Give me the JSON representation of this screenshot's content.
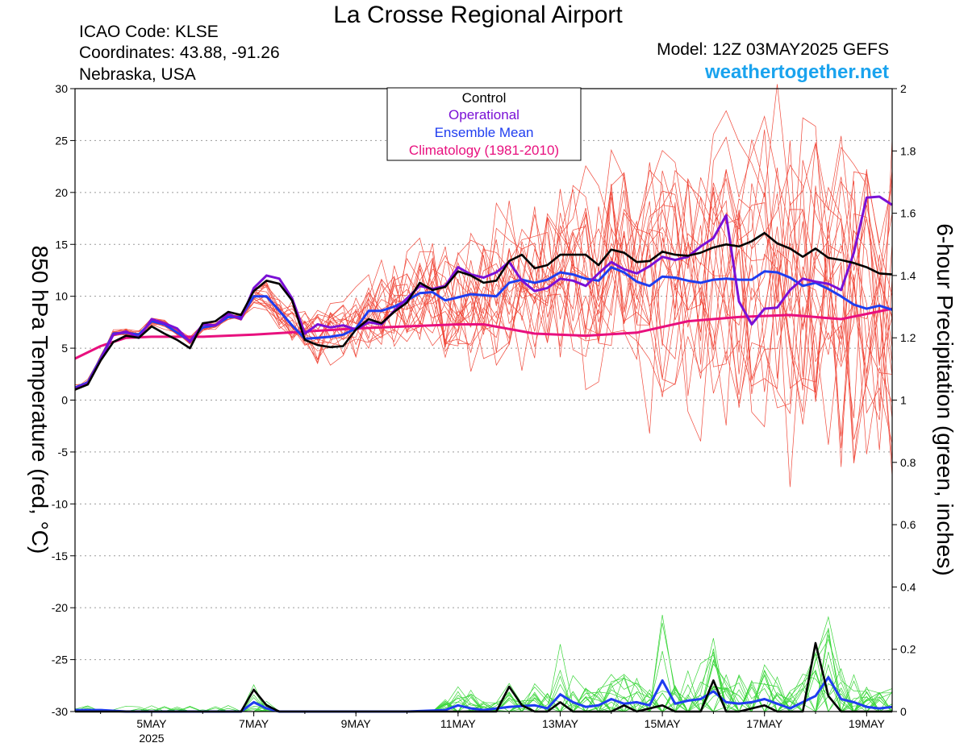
{
  "header": {
    "title": "La Crosse Regional Airport",
    "icao": "ICAO Code: KLSE",
    "coords": "Coordinates: 43.88, -91.26",
    "region": "Nebraska, USA",
    "model": "Model: 12Z 03MAY2025 GEFS",
    "site": "weathertogether.net"
  },
  "colors": {
    "control": "#000000",
    "operational": "#7a10d6",
    "mean": "#1f3df0",
    "climatology": "#e8107e",
    "members_temp": "#f04a3c",
    "members_precip": "#3ad63a"
  },
  "chart_data": {
    "type": "line",
    "title": "La Crosse Regional Airport",
    "ylabel": "850 hPa Temperature (red, °C)",
    "y2label": "6-hour Precipitation (green, inches)",
    "ylim": [
      -30,
      30
    ],
    "y2lim": [
      0,
      2
    ],
    "xlim": [
      3.5,
      19.5
    ],
    "y_ticks": [
      "30",
      "25",
      "20",
      "15",
      "10",
      "5",
      "0",
      "-5",
      "-10",
      "-15",
      "-20",
      "-25",
      "-30"
    ],
    "y2_ticks": [
      "2",
      "1.8",
      "1.6",
      "1.4",
      "1.2",
      "1",
      "0.8",
      "0.6",
      "0.4",
      "0.2",
      "0"
    ],
    "x_ticks": [
      {
        "x": 5,
        "label": "5MAY",
        "sub": "2025"
      },
      {
        "x": 7,
        "label": "7MAY",
        "sub": ""
      },
      {
        "x": 9,
        "label": "9MAY",
        "sub": ""
      },
      {
        "x": 11,
        "label": "11MAY",
        "sub": ""
      },
      {
        "x": 13,
        "label": "13MAY",
        "sub": ""
      },
      {
        "x": 15,
        "label": "15MAY",
        "sub": ""
      },
      {
        "x": 17,
        "label": "17MAY",
        "sub": ""
      },
      {
        "x": 19,
        "label": "19MAY",
        "sub": ""
      }
    ],
    "legend": {
      "placement": "top-center",
      "items": [
        "Control",
        "Operational",
        "Ensemble Mean",
        "Climatology (1981-2010)"
      ]
    },
    "grid": "horizontal dotted",
    "series": [
      {
        "name": "Climatology (1981-2010)",
        "role": "climatology",
        "axis": "left",
        "x": [
          3.5,
          4.0,
          4.5,
          5.0,
          6.0,
          7.0,
          8.0,
          9.0,
          10.0,
          11.0,
          11.5,
          12.5,
          13.5,
          14.5,
          15.5,
          16.5,
          17.5,
          18.5,
          19.5
        ],
        "y": [
          4.0,
          5.2,
          6.0,
          6.1,
          6.1,
          6.3,
          6.6,
          6.9,
          7.1,
          7.3,
          7.3,
          6.4,
          6.2,
          6.5,
          7.6,
          8.0,
          8.2,
          7.8,
          8.8
        ]
      },
      {
        "name": "Control",
        "role": "control",
        "axis": "left",
        "x": [
          3.5,
          3.75,
          4.0,
          4.25,
          4.5,
          4.75,
          5.0,
          5.25,
          5.5,
          5.75,
          6.0,
          6.25,
          6.5,
          6.75,
          7.0,
          7.25,
          7.5,
          7.75,
          8.0,
          8.25,
          8.5,
          8.75,
          9.0,
          9.25,
          9.5,
          9.75,
          10.0,
          10.25,
          10.5,
          10.75,
          11.0,
          11.25,
          11.5,
          11.75,
          12.0,
          12.25,
          12.5,
          12.75,
          13.0,
          13.25,
          13.5,
          13.75,
          14.0,
          14.25,
          14.5,
          14.75,
          15.0,
          15.25,
          15.5,
          15.75,
          16.0,
          16.25,
          16.5,
          16.75,
          17.0,
          17.25,
          17.5,
          17.75,
          18.0,
          18.25,
          18.5,
          18.75,
          19.0,
          19.25,
          19.5
        ],
        "y": [
          1.0,
          1.5,
          3.8,
          5.6,
          6.2,
          6.0,
          7.1,
          6.4,
          5.8,
          5.0,
          7.4,
          7.6,
          8.5,
          8.2,
          10.5,
          11.5,
          11.2,
          9.6,
          5.8,
          5.3,
          5.1,
          5.2,
          6.8,
          7.8,
          7.4,
          8.5,
          9.4,
          11.3,
          10.6,
          10.9,
          12.4,
          12.0,
          11.3,
          11.5,
          13.4,
          14.0,
          12.7,
          13.0,
          14.0,
          14.0,
          14.0,
          13.0,
          14.5,
          14.2,
          13.3,
          13.4,
          14.3,
          14.0,
          13.9,
          14.2,
          14.7,
          15.0,
          14.8,
          15.3,
          16.1,
          15.1,
          14.6,
          13.8,
          14.6,
          13.7,
          13.5,
          13.2,
          12.8,
          12.2,
          12.1
        ]
      },
      {
        "name": "Operational",
        "role": "operational",
        "axis": "left",
        "x": [
          3.5,
          3.75,
          4.0,
          4.25,
          4.5,
          4.75,
          5.0,
          5.25,
          5.5,
          5.75,
          6.0,
          6.25,
          6.5,
          6.75,
          7.0,
          7.25,
          7.5,
          7.75,
          8.0,
          8.25,
          8.5,
          8.75,
          9.0,
          9.25,
          9.5,
          9.75,
          10.0,
          10.25,
          10.5,
          10.75,
          11.0,
          11.25,
          11.5,
          11.75,
          12.0,
          12.25,
          12.5,
          12.75,
          13.0,
          13.25,
          13.5,
          13.75,
          14.0,
          14.25,
          14.5,
          14.75,
          15.0,
          15.25,
          15.5,
          15.75,
          16.0,
          16.25,
          16.5,
          16.75,
          17.0,
          17.25,
          17.5,
          17.75,
          18.0,
          18.25,
          18.5,
          18.75,
          19.0,
          19.25,
          19.5
        ],
        "y": [
          1.1,
          1.6,
          3.9,
          6.3,
          6.6,
          6.0,
          7.8,
          7.4,
          6.9,
          5.6,
          7.3,
          7.2,
          8.3,
          7.8,
          10.8,
          12.0,
          11.7,
          9.8,
          6.4,
          7.3,
          7.0,
          7.2,
          6.8,
          7.5,
          7.3,
          8.6,
          9.8,
          11.0,
          10.7,
          11.0,
          12.8,
          12.1,
          11.8,
          12.3,
          13.3,
          11.5,
          10.5,
          10.8,
          11.7,
          11.5,
          11.0,
          12.2,
          13.3,
          12.6,
          12.2,
          12.9,
          13.8,
          13.5,
          13.8,
          14.8,
          15.6,
          17.8,
          9.5,
          7.3,
          8.8,
          8.9,
          10.6,
          11.7,
          11.4,
          11.2,
          10.6,
          14.2,
          19.5,
          19.6,
          18.8
        ]
      },
      {
        "name": "Ensemble Mean",
        "role": "mean",
        "axis": "left",
        "x": [
          3.5,
          3.75,
          4.0,
          4.25,
          4.5,
          4.75,
          5.0,
          5.25,
          5.5,
          5.75,
          6.0,
          6.25,
          6.5,
          6.75,
          7.0,
          7.25,
          7.5,
          7.75,
          8.0,
          8.25,
          8.5,
          8.75,
          9.0,
          9.25,
          9.5,
          9.75,
          10.0,
          10.25,
          10.5,
          10.75,
          11.0,
          11.25,
          11.5,
          11.75,
          12.0,
          12.25,
          12.5,
          12.75,
          13.0,
          13.25,
          13.5,
          13.75,
          14.0,
          14.25,
          14.5,
          14.75,
          15.0,
          15.25,
          15.5,
          15.75,
          16.0,
          16.25,
          16.5,
          16.75,
          17.0,
          17.25,
          17.5,
          17.75,
          18.0,
          18.25,
          18.5,
          18.75,
          19.0,
          19.25,
          19.5
        ],
        "y": [
          1.2,
          1.7,
          4.0,
          6.4,
          6.5,
          6.3,
          7.6,
          7.3,
          6.5,
          5.7,
          7.0,
          7.2,
          8.0,
          8.0,
          10.0,
          10.0,
          8.6,
          7.2,
          5.9,
          6.0,
          6.1,
          6.3,
          6.9,
          8.6,
          8.6,
          9.0,
          9.6,
          10.3,
          10.4,
          9.6,
          9.9,
          10.2,
          10.1,
          10.0,
          11.3,
          11.6,
          11.3,
          11.6,
          12.3,
          12.1,
          11.7,
          11.5,
          12.8,
          12.3,
          11.4,
          11.0,
          11.9,
          11.8,
          11.5,
          11.3,
          11.6,
          11.7,
          11.6,
          11.6,
          12.4,
          12.3,
          11.8,
          11.0,
          11.3,
          10.7,
          10.0,
          9.2,
          8.8,
          9.1,
          8.7
        ]
      },
      {
        "name": "Control 6-hr precipitation",
        "role": "control",
        "axis": "right",
        "x": [
          3.5,
          4.0,
          5.0,
          6.0,
          6.75,
          7.0,
          7.25,
          7.5,
          8.0,
          9.0,
          10.0,
          11.0,
          11.75,
          12.0,
          12.25,
          12.5,
          12.75,
          13.0,
          13.25,
          13.5,
          14.0,
          14.25,
          14.5,
          15.0,
          15.25,
          15.5,
          15.75,
          16.0,
          16.25,
          16.5,
          17.0,
          17.25,
          17.5,
          17.75,
          18.0,
          18.25,
          18.5,
          19.0,
          19.5
        ],
        "y": [
          0,
          0,
          0,
          0,
          0,
          0.07,
          0.02,
          0,
          0,
          0,
          0,
          0,
          0,
          0.08,
          0.02,
          0,
          0,
          0.03,
          0,
          0,
          0,
          0.02,
          0,
          0.02,
          0,
          0,
          0,
          0.1,
          0,
          0,
          0.02,
          0,
          0,
          0,
          0.22,
          0.05,
          0,
          0,
          0
        ]
      },
      {
        "name": "Mean 6-hr precipitation",
        "role": "mean",
        "axis": "right",
        "x": [
          3.5,
          4.0,
          4.5,
          5.0,
          6.0,
          6.75,
          7.0,
          7.25,
          7.5,
          8.0,
          9.0,
          10.0,
          10.75,
          11.0,
          11.25,
          11.5,
          12.0,
          12.5,
          12.75,
          13.0,
          13.25,
          13.5,
          13.75,
          14.0,
          14.25,
          14.5,
          14.75,
          15.0,
          15.25,
          15.5,
          15.75,
          16.0,
          16.25,
          16.5,
          16.75,
          17.0,
          17.25,
          17.5,
          17.75,
          18.0,
          18.25,
          18.5,
          18.75,
          19.0,
          19.25,
          19.5
        ],
        "y": [
          0.005,
          0.005,
          0,
          0,
          0,
          0,
          0.03,
          0.01,
          0,
          0,
          0,
          0,
          0.005,
          0.02,
          0.01,
          0.005,
          0.015,
          0.02,
          0.01,
          0.055,
          0.03,
          0.015,
          0.02,
          0.04,
          0.025,
          0.03,
          0.02,
          0.1,
          0.025,
          0.035,
          0.04,
          0.065,
          0.03,
          0.025,
          0.03,
          0.04,
          0.025,
          0.01,
          0.03,
          0.05,
          0.11,
          0.04,
          0.03,
          0.015,
          0.01,
          0.015
        ]
      }
    ]
  }
}
